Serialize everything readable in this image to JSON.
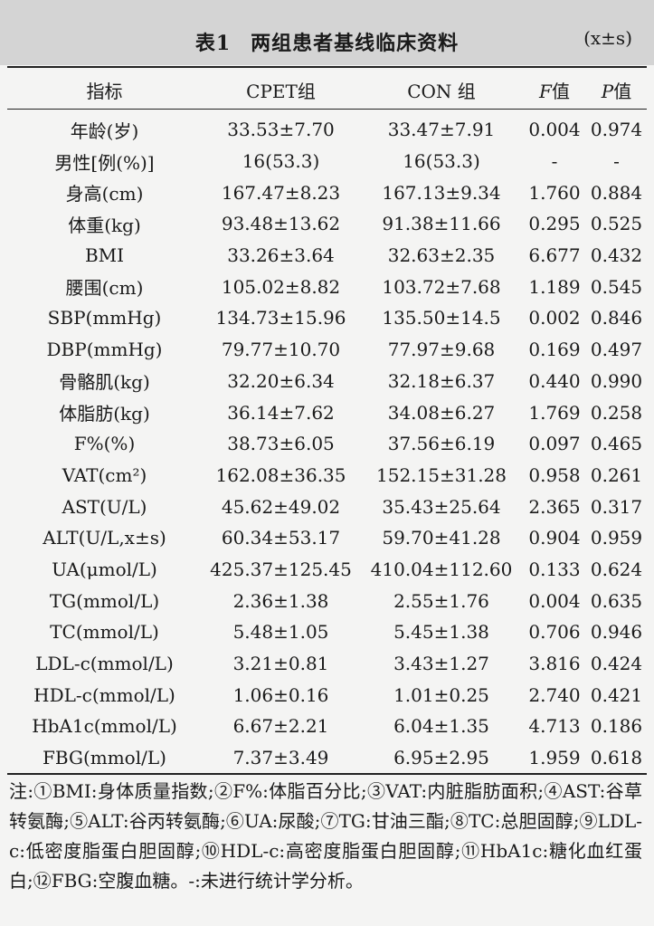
{
  "table": {
    "number": "表1",
    "title": "两组患者基线临床资料",
    "stat_note": "(x±s)",
    "headers": {
      "indicator": "指标",
      "cpet": "CPET组",
      "con": "CON 组",
      "f_letter": "F",
      "f_suffix": "值",
      "p_letter": "P",
      "p_suffix": "值"
    },
    "rows": [
      {
        "indicator": "年龄(岁)",
        "cpet": "33.53±7.70",
        "con": "33.47±7.91",
        "f": "0.004",
        "p": "0.974"
      },
      {
        "indicator": "男性[例(%)]",
        "cpet": "16(53.3)",
        "con": "16(53.3)",
        "f": "-",
        "p": "-"
      },
      {
        "indicator": "身高(cm)",
        "cpet": "167.47±8.23",
        "con": "167.13±9.34",
        "f": "1.760",
        "p": "0.884"
      },
      {
        "indicator": "体重(kg)",
        "cpet": "93.48±13.62",
        "con": "91.38±11.66",
        "f": "0.295",
        "p": "0.525"
      },
      {
        "indicator": "BMI",
        "cpet": "33.26±3.64",
        "con": "32.63±2.35",
        "f": "6.677",
        "p": "0.432"
      },
      {
        "indicator": "腰围(cm)",
        "cpet": "105.02±8.82",
        "con": "103.72±7.68",
        "f": "1.189",
        "p": "0.545"
      },
      {
        "indicator": "SBP(mmHg)",
        "cpet": "134.73±15.96",
        "con": "135.50±14.5",
        "f": "0.002",
        "p": "0.846"
      },
      {
        "indicator": "DBP(mmHg)",
        "cpet": "79.77±10.70",
        "con": "77.97±9.68",
        "f": "0.169",
        "p": "0.497"
      },
      {
        "indicator": "骨骼肌(kg)",
        "cpet": "32.20±6.34",
        "con": "32.18±6.37",
        "f": "0.440",
        "p": "0.990"
      },
      {
        "indicator": "体脂肪(kg)",
        "cpet": "36.14±7.62",
        "con": "34.08±6.27",
        "f": "1.769",
        "p": "0.258"
      },
      {
        "indicator": "F%(%)",
        "cpet": "38.73±6.05",
        "con": "37.56±6.19",
        "f": "0.097",
        "p": "0.465"
      },
      {
        "indicator": "VAT(cm²)",
        "cpet": "162.08±36.35",
        "con": "152.15±31.28",
        "f": "0.958",
        "p": "0.261"
      },
      {
        "indicator": "AST(U/L)",
        "cpet": "45.62±49.02",
        "con": "35.43±25.64",
        "f": "2.365",
        "p": "0.317"
      },
      {
        "indicator": "ALT(U/L,x±s)",
        "cpet": "60.34±53.17",
        "con": "59.70±41.28",
        "f": "0.904",
        "p": "0.959"
      },
      {
        "indicator": "UA(μmol/L)",
        "cpet": "425.37±125.45",
        "con": "410.04±112.60",
        "f": "0.133",
        "p": "0.624"
      },
      {
        "indicator": "TG(mmol/L)",
        "cpet": "2.36±1.38",
        "con": "2.55±1.76",
        "f": "0.004",
        "p": "0.635"
      },
      {
        "indicator": "TC(mmol/L)",
        "cpet": "5.48±1.05",
        "con": "5.45±1.38",
        "f": "0.706",
        "p": "0.946"
      },
      {
        "indicator": "LDL-c(mmol/L)",
        "cpet": "3.21±0.81",
        "con": "3.43±1.27",
        "f": "3.816",
        "p": "0.424"
      },
      {
        "indicator": "HDL-c(mmol/L)",
        "cpet": "1.06±0.16",
        "con": "1.01±0.25",
        "f": "2.740",
        "p": "0.421"
      },
      {
        "indicator": "HbA1c(mmol/L)",
        "cpet": "6.67±2.21",
        "con": "6.04±1.35",
        "f": "4.713",
        "p": "0.186"
      },
      {
        "indicator": "FBG(mmol/L)",
        "cpet": "7.37±3.49",
        "con": "6.95±2.95",
        "f": "1.959",
        "p": "0.618"
      }
    ],
    "footnote": "注:①BMI:身体质量指数;②F%:体脂百分比;③VAT:内脏脂肪面积;④AST:谷草转氨酶;⑤ALT:谷丙转氨酶;⑥UA:尿酸;⑦TG:甘油三酯;⑧TC:总胆固醇;⑨LDL-c:低密度脂蛋白胆固醇;⑩HDL-c:高密度脂蛋白胆固醇;⑪HbA1c:糖化血红蛋白;⑫FBG:空腹血糖。-:未进行统计学分析。"
  }
}
